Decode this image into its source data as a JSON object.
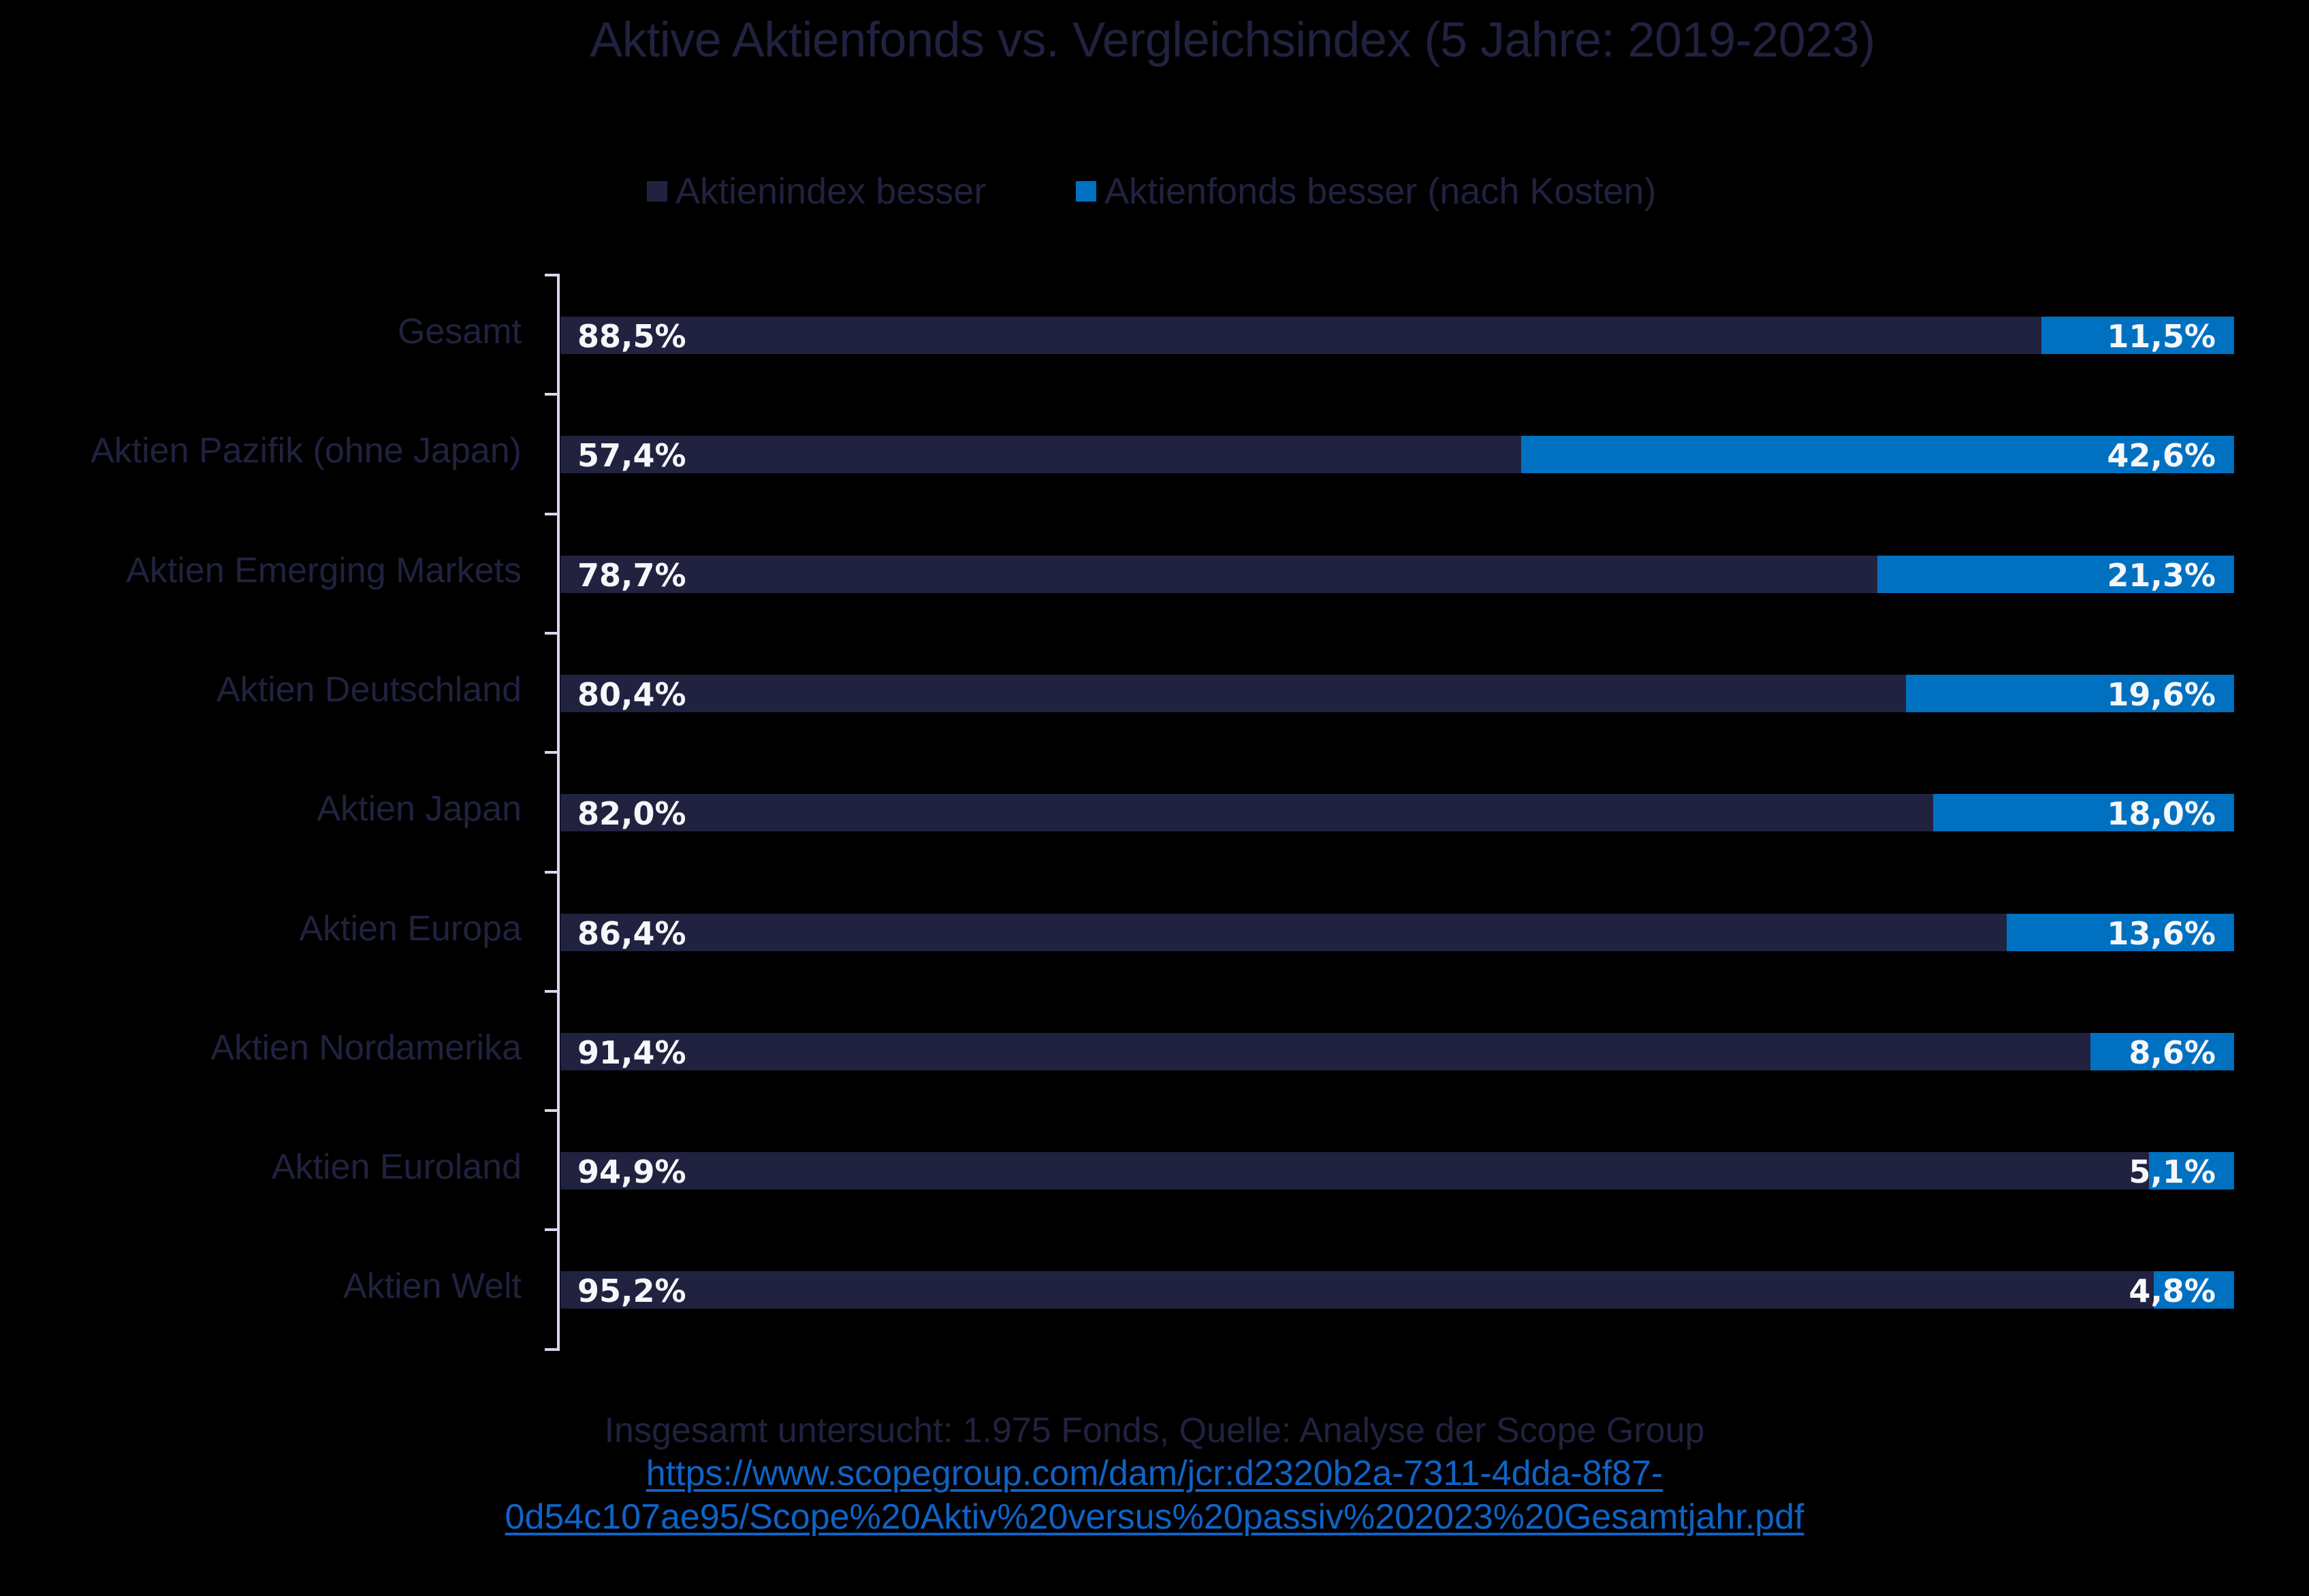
{
  "chart_data": {
    "type": "bar",
    "orientation": "horizontal",
    "stacked": true,
    "percent_stacked": true,
    "title": "Aktive Aktienfonds vs. Vergleichsindex (5 Jahre: 2019-2023)",
    "xlabel": "",
    "ylabel": "",
    "xlim": [
      0,
      100
    ],
    "grid": false,
    "legend_position": "top",
    "categories": [
      "Gesamt",
      "Aktien Pazifik (ohne Japan)",
      "Aktien Emerging Markets",
      "Aktien Deutschland",
      "Aktien Japan",
      "Aktien Europa",
      "Aktien Nordamerika",
      "Aktien Euroland",
      "Aktien Welt"
    ],
    "series": [
      {
        "name": "Aktienindex besser",
        "color": "#20223f",
        "values": [
          88.5,
          57.4,
          78.7,
          80.4,
          82.0,
          86.4,
          91.4,
          94.9,
          95.2
        ],
        "labels": [
          "88,5%",
          "57,4%",
          "78,7%",
          "80,4%",
          "82,0%",
          "86,4%",
          "91,4%",
          "94,9%",
          "95,2%"
        ]
      },
      {
        "name": "Aktienfonds besser (nach Kosten)",
        "color": "#0070c0",
        "values": [
          11.5,
          42.6,
          21.3,
          19.6,
          18.0,
          13.6,
          8.6,
          5.1,
          4.8
        ],
        "labels": [
          "11,5%",
          "42,6%",
          "21,3%",
          "19,6%",
          "18,0%",
          "13,6%",
          "8,6%",
          "5,1%",
          "4,8%"
        ]
      }
    ],
    "annotations": [
      "Insgesamt untersucht: 1.975 Fonds, Quelle: Analyse der Scope Group",
      "https://www.scopegroup.com/dam/jcr:d2320b2a-7311-4dda-8f87-0d54c107ae95/Scope%20Aktiv%20versus%20passiv%202023%20Gesamtjahr.pdf"
    ]
  },
  "title": "Aktive Aktienfonds vs. Vergleichsindex (5 Jahre: 2019-2023)",
  "legend": {
    "items": [
      {
        "label": "Aktienindex besser",
        "color": "#20223f"
      },
      {
        "label": "Aktienfonds besser (nach Kosten)",
        "color": "#0070c0"
      }
    ]
  },
  "footer": {
    "note": "Insgesamt untersucht: 1.975 Fonds, Quelle: Analyse der Scope Group",
    "link_line1": "https://www.scopegroup.com/dam/jcr:d2320b2a-7311-4dda-8f87-",
    "link_line2": "0d54c107ae95/Scope%20Aktiv%20versus%20passiv%202023%20Gesamtjahr.pdf"
  },
  "colors": {
    "background": "#000000",
    "text": "#20223f",
    "index_bar": "#20223f",
    "fonds_bar": "#0070c0",
    "value_label": "#f5f7fa",
    "axis": "#d6d8ec",
    "link": "#0f63c6"
  }
}
